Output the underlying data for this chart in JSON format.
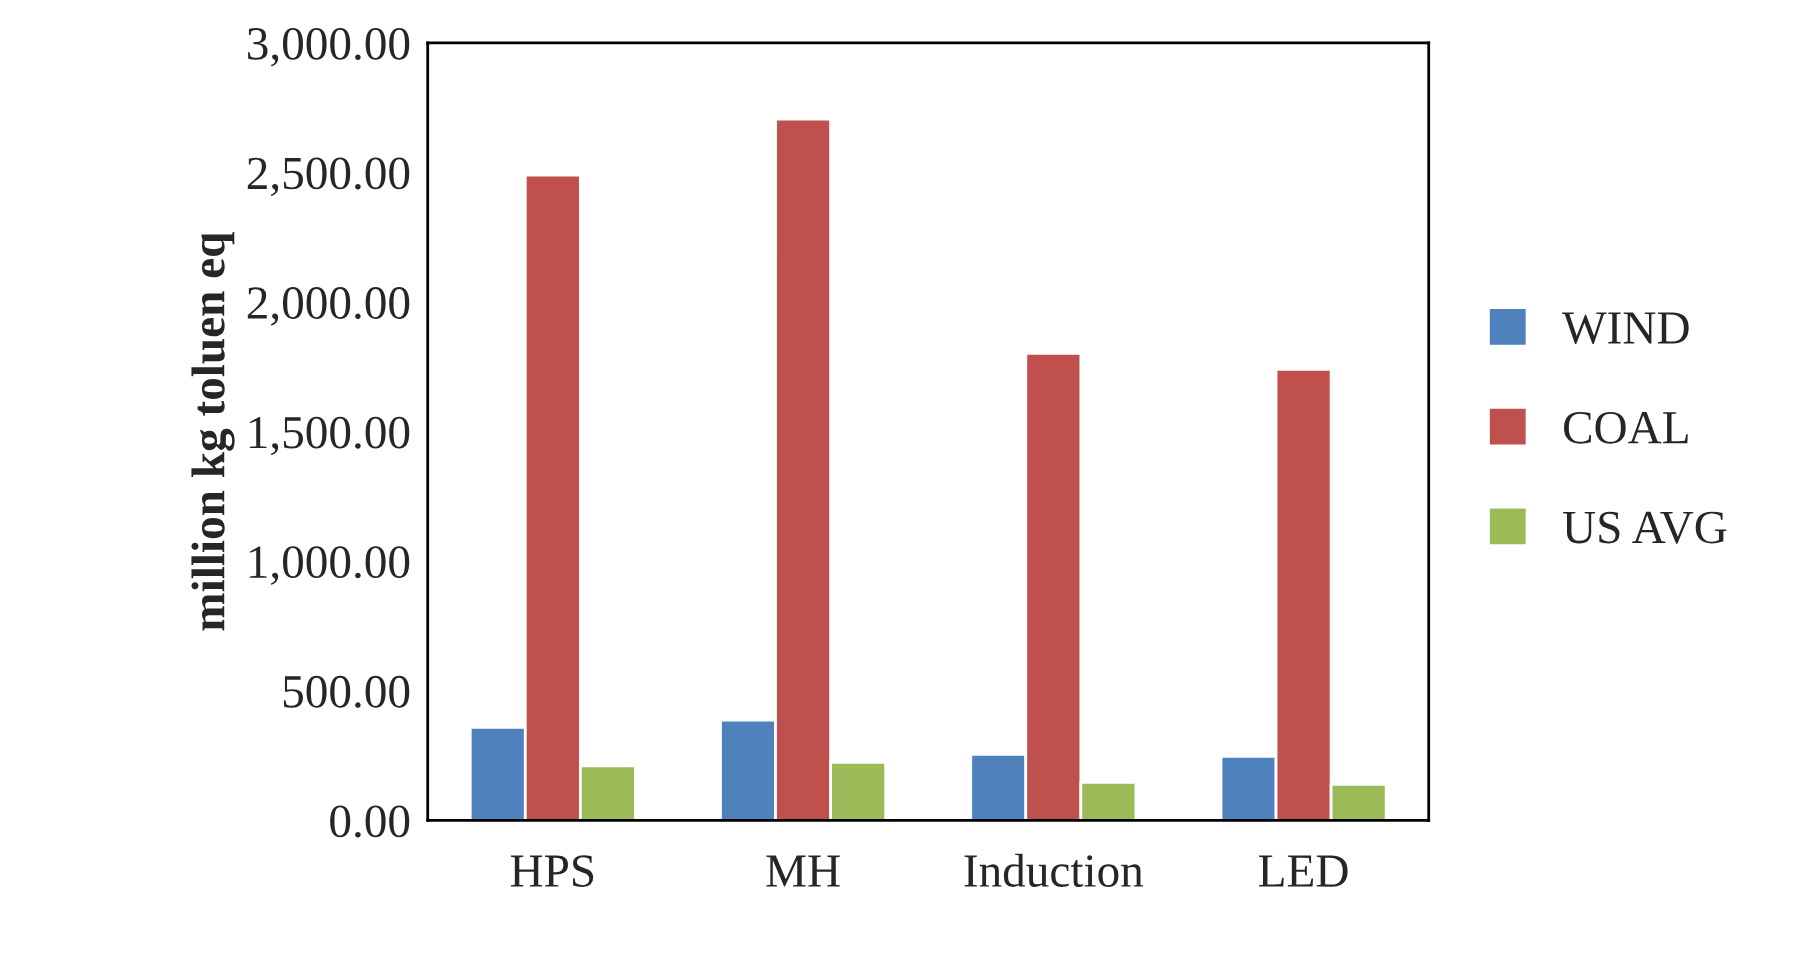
{
  "chart_data": {
    "type": "bar",
    "ylabel": "million kg toluen eq",
    "categories": [
      "HPS",
      "MH",
      "Induction",
      "LED"
    ],
    "series": [
      {
        "name": "WIND",
        "color": "#4f81bd",
        "values": [
          359,
          387,
          255,
          247
        ]
      },
      {
        "name": "COAL",
        "color": "#c0504d",
        "values": [
          2490,
          2706,
          1802,
          1740
        ]
      },
      {
        "name": "US AVG",
        "color": "#9bbb59",
        "values": [
          211,
          224,
          147,
          139
        ]
      }
    ],
    "ylim": [
      0,
      3000
    ],
    "yticks": [
      {
        "value": 0,
        "label": "0.00"
      },
      {
        "value": 500,
        "label": "500.00"
      },
      {
        "value": 1000,
        "label": "1,000.00"
      },
      {
        "value": 1500,
        "label": "1,500.00"
      },
      {
        "value": 2000,
        "label": "2,000.00"
      },
      {
        "value": 2500,
        "label": "2,500.00"
      },
      {
        "value": 3000,
        "label": "3,000.00"
      }
    ],
    "grid": false,
    "legend": "right"
  }
}
